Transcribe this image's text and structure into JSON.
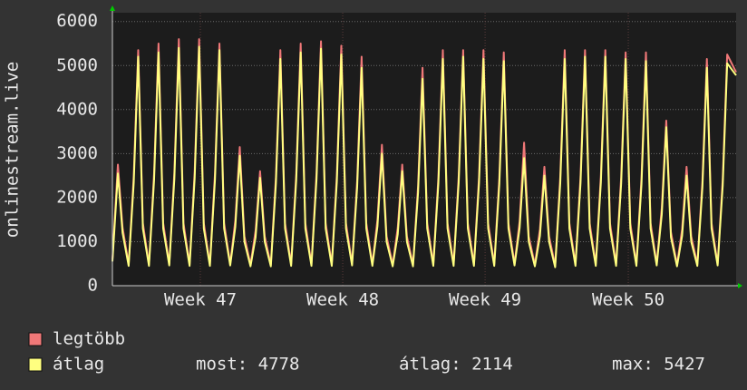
{
  "chart_data": {
    "type": "line",
    "y_label": "onlinestream.live",
    "x": [
      0,
      0.27,
      0.5,
      0.8,
      1.05,
      1.27,
      1.5,
      1.8,
      2.05,
      2.27,
      2.5,
      2.8,
      3.05,
      3.27,
      3.5,
      3.8,
      4.05,
      4.27,
      4.5,
      4.8,
      5.05,
      5.27,
      5.5,
      5.8,
      6.05,
      6.27,
      6.5,
      6.8,
      7.05,
      7.27,
      7.5,
      7.8,
      8.05,
      8.27,
      8.5,
      8.8,
      9.05,
      9.27,
      9.5,
      9.8,
      10.05,
      10.27,
      10.5,
      10.8,
      11.05,
      11.27,
      11.5,
      11.8,
      12.05,
      12.27,
      12.5,
      12.8,
      13.05,
      13.27,
      13.5,
      13.8,
      14.05,
      14.27,
      14.5,
      14.8,
      15.05,
      15.27,
      15.5,
      15.8,
      16.05,
      16.27,
      16.5,
      16.8,
      17.05,
      17.27,
      17.5,
      17.8,
      18.05,
      18.27,
      18.5,
      18.8,
      19.05,
      19.27,
      19.5,
      19.8,
      20.05,
      20.27,
      20.5,
      20.8,
      21.05,
      21.27,
      21.5,
      21.8,
      22.05,
      22.27,
      22.5,
      22.8,
      23.05,
      23.27,
      23.5,
      23.8,
      24.05,
      24.27,
      24.5,
      24.8,
      25.05,
      25.27,
      25.5,
      25.8,
      26.05,
      26.27,
      26.5,
      26.8,
      27.05,
      27.27,
      27.5,
      27.8,
      28.05,
      28.27,
      28.5,
      28.8,
      29.05,
      29.27,
      29.5,
      29.8,
      30.05,
      30.27,
      30.71
    ],
    "series": [
      {
        "name": "legtöbb",
        "color": "#f07878",
        "values": [
          600,
          2750,
          1320,
          490,
          2490,
          5350,
          1420,
          490,
          2540,
          5500,
          1420,
          500,
          2580,
          5600,
          1420,
          490,
          2590,
          5600,
          1420,
          490,
          2560,
          5500,
          1420,
          500,
          1480,
          3150,
          1120,
          480,
          1250,
          2600,
          1120,
          480,
          2470,
          5350,
          1420,
          490,
          2540,
          5500,
          1420,
          490,
          2570,
          5550,
          1420,
          490,
          2510,
          5450,
          1420,
          500,
          2380,
          5200,
          1420,
          490,
          1500,
          3200,
          1120,
          480,
          1320,
          2750,
          1120,
          480,
          2270,
          4950,
          1420,
          490,
          2470,
          5350,
          1420,
          490,
          2490,
          5350,
          1420,
          490,
          2470,
          5350,
          1420,
          490,
          2450,
          5300,
          1420,
          500,
          1460,
          3250,
          1120,
          480,
          1280,
          2700,
          1120,
          460,
          2470,
          5350,
          1420,
          490,
          2490,
          5350,
          1420,
          490,
          2490,
          5350,
          1420,
          490,
          2470,
          5300,
          1420,
          490,
          2450,
          5300,
          1420,
          500,
          1770,
          3750,
          1220,
          480,
          1280,
          2700,
          1120,
          490,
          2380,
          5150,
          1420,
          500,
          2420,
          5250,
          4850
        ]
      },
      {
        "name": "átlag",
        "color": "#ffff80",
        "values": [
          550,
          2550,
          1200,
          450,
          2340,
          5200,
          1300,
          450,
          2390,
          5300,
          1300,
          460,
          2430,
          5400,
          1300,
          450,
          2440,
          5427,
          1300,
          450,
          2410,
          5350,
          1300,
          460,
          1330,
          2950,
          1000,
          440,
          1100,
          2450,
          1000,
          440,
          2320,
          5150,
          1300,
          450,
          2390,
          5300,
          1300,
          450,
          2420,
          5380,
          1300,
          450,
          2360,
          5250,
          1300,
          460,
          2230,
          4950,
          1300,
          450,
          1350,
          3000,
          1000,
          440,
          1170,
          2600,
          1000,
          440,
          2120,
          4700,
          1300,
          450,
          2320,
          5150,
          1300,
          450,
          2340,
          5200,
          1300,
          450,
          2320,
          5150,
          1300,
          450,
          2300,
          5100,
          1300,
          460,
          1310,
          2900,
          1000,
          440,
          1130,
          2500,
          1000,
          420,
          2320,
          5150,
          1300,
          450,
          2340,
          5200,
          1300,
          450,
          2340,
          5200,
          1300,
          450,
          2320,
          5150,
          1300,
          450,
          2300,
          5100,
          1300,
          460,
          1620,
          3600,
          1100,
          440,
          1130,
          2500,
          1000,
          450,
          2230,
          4950,
          1300,
          460,
          2270,
          5050,
          4778
        ]
      }
    ],
    "xlim": [
      0,
      30.71
    ],
    "xticks": [
      {
        "value": 4.33,
        "label": "Week 47"
      },
      {
        "value": 11.34,
        "label": "Week 48"
      },
      {
        "value": 18.35,
        "label": "Week 49"
      },
      {
        "value": 25.4,
        "label": "Week 50"
      }
    ],
    "ylim": [
      0,
      6200
    ],
    "yticks": [
      0,
      1000,
      2000,
      3000,
      4000,
      5000,
      6000
    ],
    "grid": true,
    "stats": [
      "most: 4778",
      "átlag: 2114",
      "max: 5427"
    ]
  }
}
